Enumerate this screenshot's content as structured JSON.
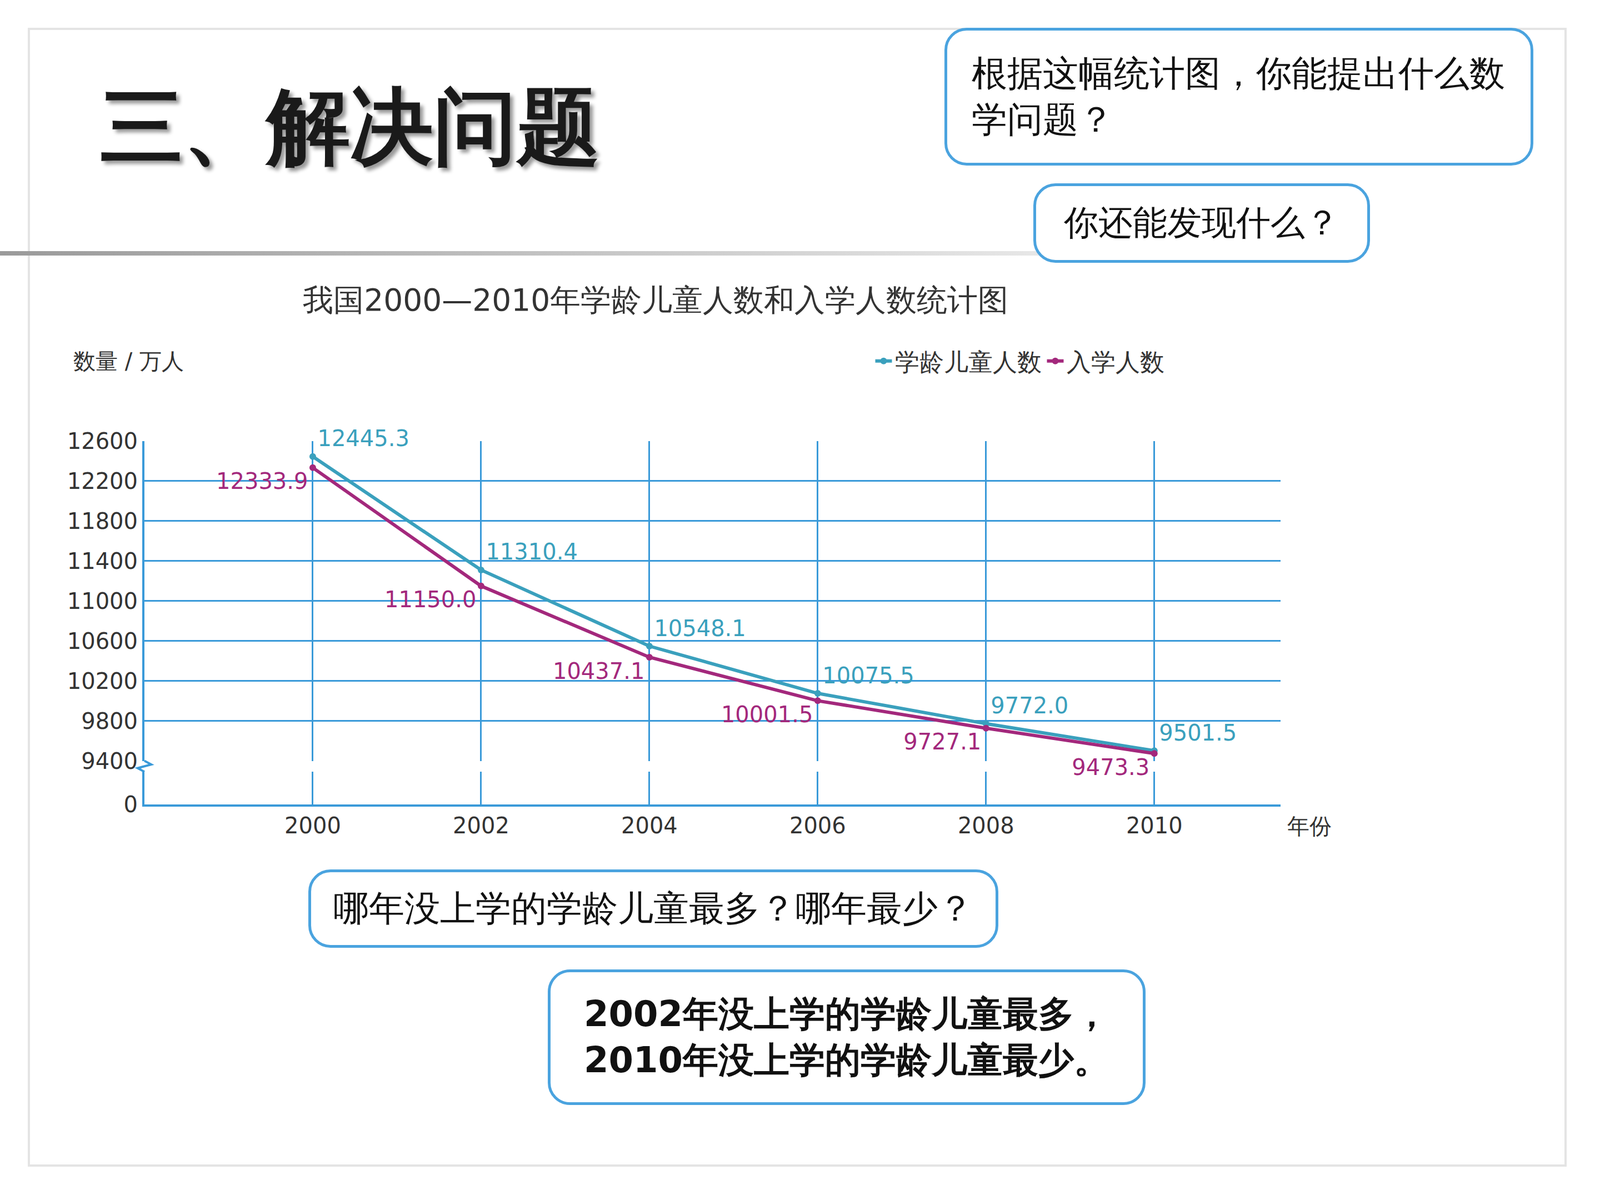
{
  "slide_title": "三、解决问题",
  "speech_bubbles": [
    {
      "lines": [
        "根据这幅统计图，你能提出什么数学问题？"
      ]
    },
    {
      "lines": [
        "你还能发现什么？"
      ]
    },
    {
      "lines": [
        "哪年没上学的学龄儿童最多？哪年最少？"
      ]
    },
    {
      "lines": [
        "2002年没上学的学龄儿童最多，",
        "2010年没上学的学龄儿童最少。"
      ]
    }
  ],
  "chart_data": {
    "type": "line",
    "title": "我国2000—2010年学龄儿童人数和入学人数统计图",
    "y_label": "数量 / 万人",
    "x_label": "年份",
    "x": [
      2000,
      2002,
      2004,
      2006,
      2008,
      2010
    ],
    "series": [
      {
        "name": "学龄儿童人数",
        "color": "#3aa0bd",
        "values": [
          12445.3,
          11310.4,
          10548.1,
          10075.5,
          9772.0,
          9501.5
        ],
        "value_labels": [
          "12445.3",
          "11310.4",
          "10548.1",
          "10075.5",
          "9772.0",
          "9501.5"
        ]
      },
      {
        "name": "入学人数",
        "color": "#a3287c",
        "values": [
          12333.9,
          11150.0,
          10437.1,
          10001.5,
          9727.1,
          9473.3
        ],
        "value_labels": [
          "12333.9",
          "11150.0",
          "10437.1",
          "10001.5",
          "9727.1",
          "9473.3"
        ]
      }
    ],
    "xlim": [
      1998,
      2011.5
    ],
    "xticks": [
      2000,
      2002,
      2004,
      2006,
      2008,
      2010
    ],
    "ylim": [
      0,
      12600
    ],
    "yticks": [
      0,
      9400,
      9800,
      10200,
      10600,
      11000,
      11400,
      11800,
      12200,
      12600
    ],
    "grid": true,
    "legend": "top right",
    "data_labels": true,
    "marker": "circle",
    "line_style": "solid"
  }
}
